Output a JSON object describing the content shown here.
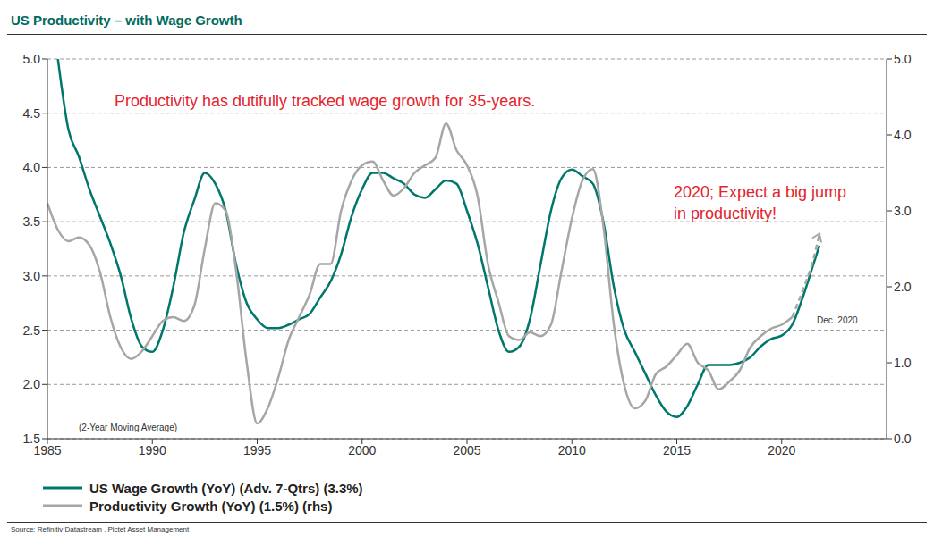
{
  "chart_data": {
    "type": "line",
    "title": "US Productivity – with Wage Growth",
    "annotations": [
      "Productivity has dutifully tracked wage growth for 35-years.",
      "2020; Expect a big jump in productivity!",
      "Dec. 2020"
    ],
    "note": "(2-Year Moving Average)",
    "source": "Source: Refinitiv Datastream , Pictet Asset Management",
    "grid": true,
    "x": [
      1985,
      1985.5,
      1986,
      1986.5,
      1987,
      1987.5,
      1988,
      1988.5,
      1989,
      1989.5,
      1990,
      1990.5,
      1991,
      1991.5,
      1992,
      1992.5,
      1993,
      1993.5,
      1994,
      1994.5,
      1995,
      1995.5,
      1996,
      1996.5,
      1997,
      1997.5,
      1998,
      1998.5,
      1999,
      1999.5,
      2000,
      2000.5,
      2001,
      2001.5,
      2002,
      2002.5,
      2003,
      2003.5,
      2004,
      2004.5,
      2005,
      2005.5,
      2006,
      2006.5,
      2007,
      2007.5,
      2008,
      2008.5,
      2009,
      2009.5,
      2010,
      2010.5,
      2011,
      2011.5,
      2012,
      2012.5,
      2013,
      2013.5,
      2014,
      2014.5,
      2015,
      2015.5,
      2016,
      2016.5,
      2017,
      2017.5,
      2018,
      2018.5,
      2019,
      2019.5,
      2020,
      2020.5,
      2021,
      2021.5,
      2021.8
    ],
    "xlim": [
      1985,
      2025
    ],
    "xticks": [
      1985,
      1990,
      1995,
      2000,
      2005,
      2010,
      2015,
      2020
    ],
    "ylim": [
      1.5,
      5
    ],
    "yticks": [
      1.5,
      {
        "value": 2,
        "label": "2.0"
      },
      2.5,
      {
        "value": 3,
        "label": "3.0"
      },
      3.5,
      {
        "value": 4,
        "label": "4.0"
      },
      4.5,
      {
        "value": 5,
        "label": "5.0"
      }
    ],
    "y2lim": [
      0,
      5
    ],
    "y2ticks": [
      {
        "value": 0,
        "label": "0.0"
      },
      {
        "value": 1,
        "label": "1.0"
      },
      {
        "value": 2,
        "label": "2.0"
      },
      {
        "value": 3,
        "label": "3.0"
      },
      {
        "value": 4,
        "label": "4.0"
      },
      {
        "value": 5,
        "label": "5.0"
      }
    ],
    "series": [
      {
        "name": "US Wage Growth (YoY) (Adv. 7-Qtrs) (3.3%)",
        "color": "#00776b",
        "line_style": "solid",
        "values": [
          null,
          5.0,
          4.35,
          4.1,
          3.8,
          3.55,
          3.3,
          3.0,
          2.6,
          2.35,
          2.3,
          2.5,
          2.9,
          3.4,
          3.7,
          3.95,
          3.85,
          3.6,
          3.1,
          2.75,
          2.6,
          2.52,
          2.52,
          2.55,
          2.6,
          2.65,
          2.8,
          2.95,
          3.2,
          3.55,
          3.8,
          3.95,
          3.95,
          3.9,
          3.85,
          3.75,
          3.72,
          3.8,
          3.88,
          3.85,
          3.6,
          3.3,
          2.9,
          2.5,
          2.3,
          2.35,
          2.6,
          3.1,
          3.6,
          3.9,
          3.98,
          3.92,
          3.85,
          3.5,
          2.9,
          2.5,
          2.3,
          2.1,
          1.9,
          1.75,
          1.7,
          1.8,
          2.0,
          2.18,
          2.18,
          2.18,
          2.2,
          2.25,
          2.35,
          2.42,
          2.45,
          2.55,
          2.8,
          3.1,
          3.28
        ]
      },
      {
        "name": "Productivity Growth (YoY) (1.5%) (rhs)",
        "color": "#a6a6a6",
        "axis": "y2",
        "line_style": "solid",
        "values": [
          3.1,
          2.75,
          2.6,
          2.65,
          2.55,
          2.2,
          1.6,
          1.2,
          1.05,
          1.15,
          1.35,
          1.55,
          1.6,
          1.55,
          1.75,
          2.5,
          3.1,
          3.0,
          2.2,
          1.0,
          0.2,
          0.4,
          0.8,
          1.3,
          1.6,
          1.9,
          2.3,
          2.3,
          3.0,
          3.4,
          3.6,
          3.65,
          3.4,
          3.2,
          3.3,
          3.5,
          3.6,
          3.7,
          4.15,
          3.8,
          3.6,
          3.2,
          2.3,
          1.8,
          1.35,
          1.3,
          1.4,
          1.35,
          1.5,
          2.2,
          2.9,
          3.4,
          3.55,
          2.8,
          1.5,
          0.7,
          0.4,
          0.5,
          0.85,
          0.95,
          1.1,
          1.25,
          1.0,
          0.9,
          0.65,
          0.75,
          0.9,
          1.2,
          1.35,
          1.45,
          1.5,
          1.6,
          null,
          null,
          null
        ]
      },
      {
        "color": "#a6a6a6",
        "axis": "y2",
        "line_style": "dashed",
        "marker": "arrow",
        "values": [
          null,
          null,
          null,
          null,
          null,
          null,
          null,
          null,
          null,
          null,
          null,
          null,
          null,
          null,
          null,
          null,
          null,
          null,
          null,
          null,
          null,
          null,
          null,
          null,
          null,
          null,
          null,
          null,
          null,
          null,
          null,
          null,
          null,
          null,
          null,
          null,
          null,
          null,
          null,
          null,
          null,
          null,
          null,
          null,
          null,
          null,
          null,
          null,
          null,
          null,
          null,
          null,
          null,
          null,
          null,
          null,
          null,
          null,
          null,
          null,
          null,
          null,
          null,
          null,
          null,
          null,
          null,
          null,
          null,
          null,
          null,
          1.6,
          1.95,
          2.35,
          2.7
        ]
      }
    ]
  }
}
